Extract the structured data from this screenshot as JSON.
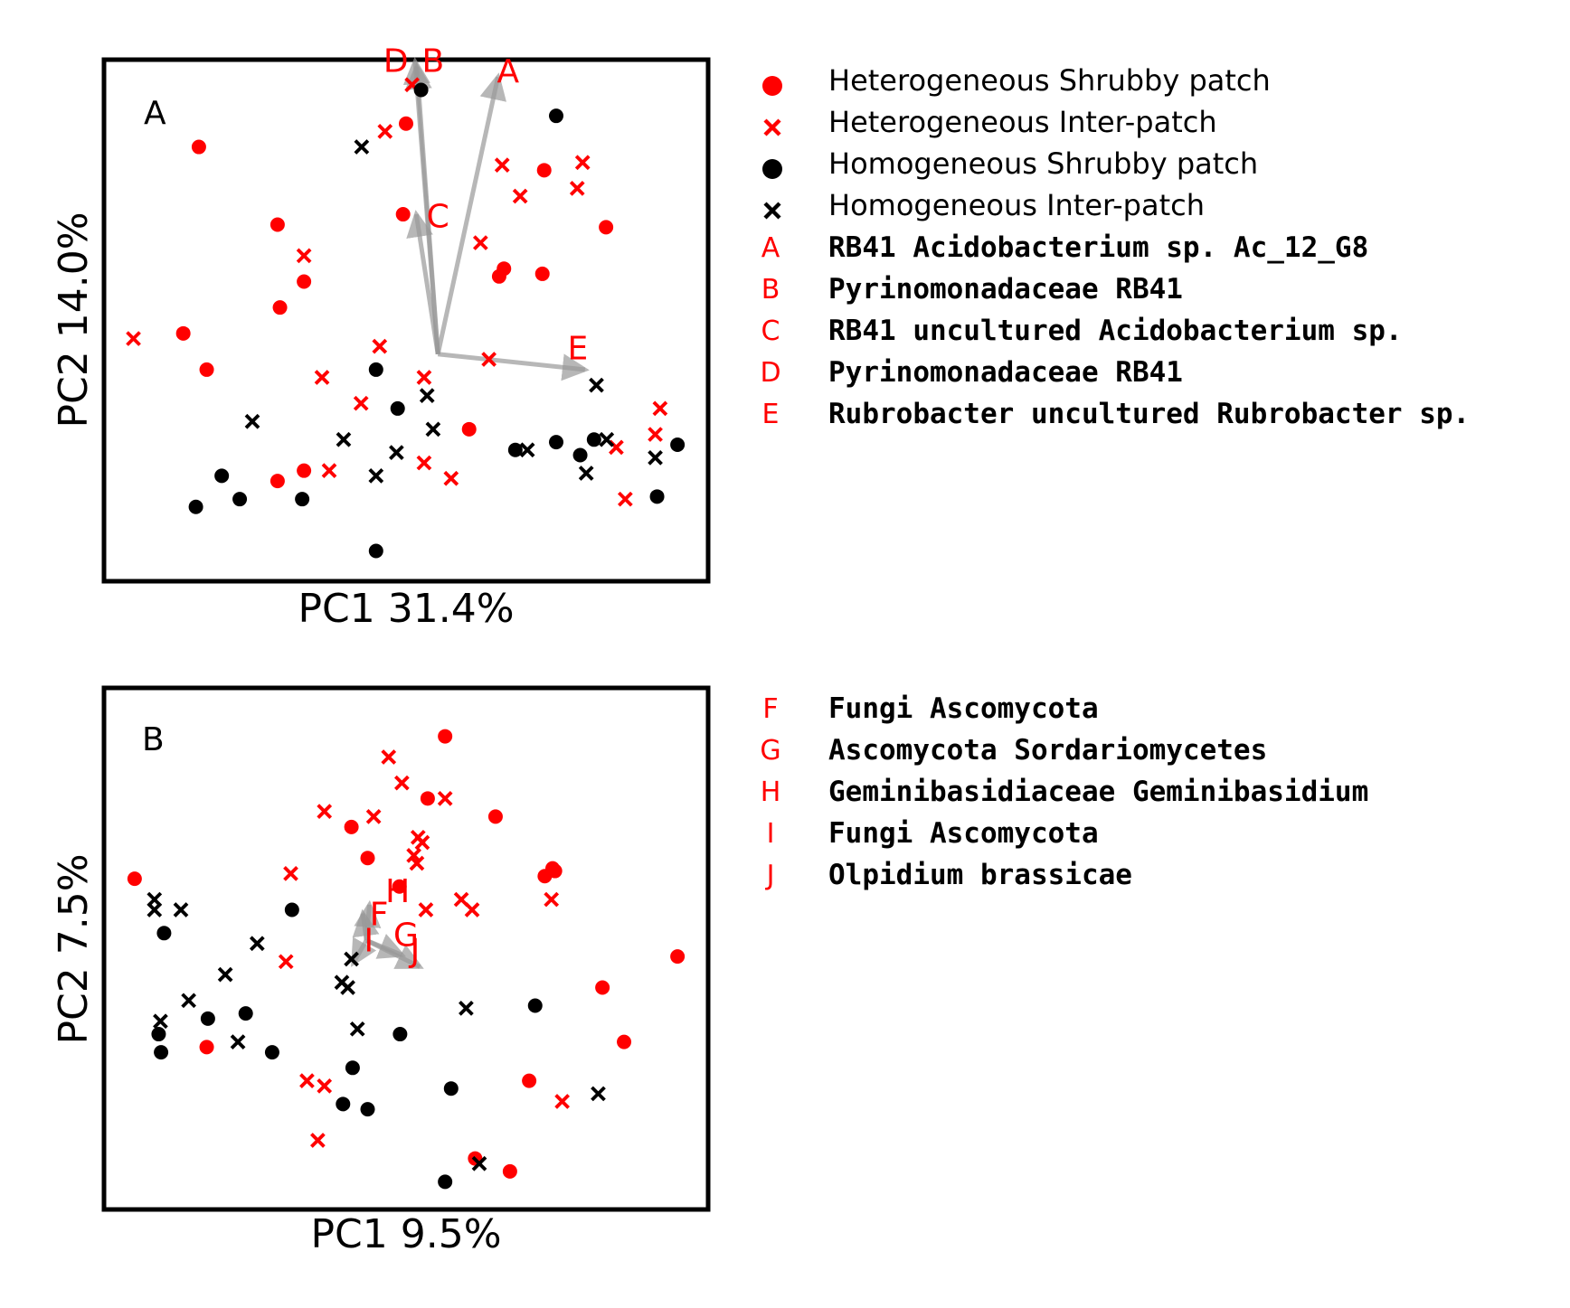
{
  "colors": {
    "heterogeneous": "#ff0000",
    "homogeneous": "#000000",
    "arrow": "#999999",
    "frame": "#000000"
  },
  "legend": {
    "groups": [
      {
        "label": "Heterogeneous Shrubby patch",
        "color": "#ff0000",
        "marker": "circle"
      },
      {
        "label": "Heterogeneous Inter-patch",
        "color": "#ff0000",
        "marker": "cross"
      },
      {
        "label": "Homogeneous Shrubby patch",
        "color": "#000000",
        "marker": "circle"
      },
      {
        "label": "Homogeneous Inter-patch",
        "color": "#000000",
        "marker": "cross"
      }
    ],
    "taxa_a": [
      {
        "key": "A",
        "label": "RB41 Acidobacterium sp. Ac_12_G8"
      },
      {
        "key": "B",
        "label": "Pyrinomonadaceae RB41"
      },
      {
        "key": "C",
        "label": "RB41 uncultured Acidobacterium sp."
      },
      {
        "key": "D",
        "label": "Pyrinomonadaceae RB41"
      },
      {
        "key": "E",
        "label": "Rubrobacter uncultured Rubrobacter sp."
      }
    ],
    "taxa_b": [
      {
        "key": "F",
        "label": "Fungi Ascomycota"
      },
      {
        "key": "G",
        "label": "Ascomycota Sordariomycetes"
      },
      {
        "key": "H",
        "label": "Geminibasidiaceae Geminibasidium"
      },
      {
        "key": "I",
        "label": "Fungi Ascomycota"
      },
      {
        "key": "J",
        "label": "Olpidium brassicae"
      }
    ]
  },
  "chart_data": [
    {
      "type": "scatter",
      "panel": "A",
      "xlabel": "PC1 31.4%",
      "ylabel": "PC2 14.0%",
      "xlim": [
        0,
        100
      ],
      "ylim": [
        0,
        100
      ],
      "ticks": "none",
      "origin": [
        55.3,
        43.5
      ],
      "arrows": [
        {
          "label": "A",
          "x": 65.3,
          "y": 97.0,
          "label_x": 67.0,
          "label_y": 96.0
        },
        {
          "label": "B",
          "x": 51.8,
          "y": 99.0,
          "label_x": 54.5,
          "label_y": 98.0
        },
        {
          "label": "C",
          "x": 51.7,
          "y": 70.5,
          "label_x": 55.3,
          "label_y": 68.0
        },
        {
          "label": "D",
          "x": 51.5,
          "y": 100.0,
          "label_x": 48.3,
          "label_y": 98.0
        },
        {
          "label": "E",
          "x": 79.8,
          "y": 40.5,
          "label_x": 78.6,
          "label_y": 42.5
        }
      ],
      "series": [
        {
          "name": "Heterogeneous Shrubby patch",
          "x": [
            15.5,
            28.6,
            29.0,
            33.0,
            49.5,
            50.0,
            66.3,
            65.5,
            72.7,
            73.0,
            83.3,
            12.9,
            16.8,
            33.0,
            28.6,
            60.5
          ],
          "y": [
            83.5,
            68.5,
            52.5,
            57.5,
            70.5,
            88.0,
            60.0,
            58.5,
            59.0,
            79.0,
            68.0,
            47.5,
            40.5,
            21.0,
            19.0,
            29.0
          ]
        },
        {
          "name": "Heterogeneous Inter-patch",
          "x": [
            51.0,
            46.5,
            66.0,
            69.0,
            79.4,
            78.5,
            62.4,
            33.0,
            4.6,
            45.6,
            36.0,
            42.5,
            63.8,
            53.0,
            53.0,
            57.5,
            92.3,
            91.5,
            85.0,
            86.5,
            37.2
          ],
          "y": [
            95.5,
            86.5,
            80.0,
            74.0,
            80.5,
            75.5,
            65.0,
            62.5,
            46.5,
            45.0,
            39.0,
            34.0,
            42.5,
            39.0,
            22.5,
            19.5,
            33.0,
            28.0,
            25.5,
            15.5,
            21.0
          ]
        },
        {
          "name": "Homogeneous Shrubby patch",
          "x": [
            52.5,
            75.0,
            45.0,
            48.6,
            19.3,
            15.0,
            22.3,
            32.7,
            45.0,
            68.2,
            75.0,
            79.0,
            81.3,
            91.8,
            95.2
          ],
          "y": [
            94.5,
            89.5,
            40.5,
            33.0,
            20.0,
            14.0,
            15.5,
            15.5,
            5.5,
            25.0,
            26.5,
            24.0,
            27.0,
            16.0,
            26.0
          ]
        },
        {
          "name": "Homogeneous Inter-patch",
          "x": [
            42.6,
            24.4,
            39.6,
            81.7,
            53.5,
            54.5,
            48.4,
            45.0,
            70.2,
            83.4,
            80.0,
            91.5
          ],
          "y": [
            83.5,
            30.5,
            27.0,
            37.5,
            35.5,
            29.0,
            24.5,
            20.0,
            25.0,
            27.0,
            20.5,
            23.5
          ]
        }
      ]
    },
    {
      "type": "scatter",
      "panel": "B",
      "xlabel": "PC1 9.5%",
      "ylabel": "PC2 7.5%",
      "xlim": [
        0,
        100
      ],
      "ylim": [
        0,
        100
      ],
      "ticks": "none",
      "origin": [
        43.4,
        51.6
      ],
      "arrows": [
        {
          "label": "F",
          "x": 42.8,
          "y": 56.8,
          "label_x": 45.5,
          "label_y": 54.5
        },
        {
          "label": "G",
          "x": 49.3,
          "y": 48.8,
          "label_x": 50.0,
          "label_y": 50.5
        },
        {
          "label": "H",
          "x": 43.9,
          "y": 58.5,
          "label_x": 48.6,
          "label_y": 59.0
        },
        {
          "label": "I",
          "x": 41.2,
          "y": 47.2,
          "label_x": 43.8,
          "label_y": 49.5
        },
        {
          "label": "J",
          "x": 52.3,
          "y": 46.5,
          "label_x": 51.5,
          "label_y": 47.5
        }
      ],
      "series": [
        {
          "name": "Heterogeneous Shrubby patch",
          "x": [
            56.5,
            53.6,
            64.9,
            40.9,
            43.6,
            73.1,
            74.4,
            74.8,
            48.9,
            4.8,
            95.2,
            82.7,
            86.3,
            16.8,
            70.5,
            61.5,
            67.3
          ],
          "y": [
            91.0,
            79.0,
            75.5,
            73.5,
            67.5,
            64.0,
            65.5,
            65.0,
            62.0,
            63.5,
            48.5,
            42.5,
            32.0,
            31.0,
            24.5,
            9.5,
            7.0
          ]
        },
        {
          "name": "Heterogeneous Inter-patch",
          "x": [
            47.1,
            49.3,
            56.5,
            36.4,
            44.6,
            52.0,
            52.7,
            51.3,
            51.8,
            30.8,
            59.2,
            61.0,
            74.2,
            53.3,
            30.0,
            33.5,
            36.4,
            76.0,
            35.3
          ],
          "y": [
            87.0,
            82.0,
            79.0,
            76.5,
            75.5,
            71.5,
            70.5,
            68.0,
            66.5,
            64.5,
            59.5,
            57.5,
            59.5,
            57.5,
            47.5,
            24.5,
            23.5,
            20.5,
            13.0
          ]
        },
        {
          "name": "Homogeneous Shrubby patch",
          "x": [
            31.0,
            9.7,
            17.0,
            23.3,
            8.8,
            9.2,
            27.7,
            49.0,
            41.1,
            39.5,
            43.6,
            57.5,
            71.5,
            56.5
          ],
          "y": [
            57.5,
            53.0,
            36.5,
            37.5,
            33.5,
            30.0,
            30.0,
            33.5,
            27.0,
            20.0,
            19.0,
            23.0,
            39.0,
            5.0
          ]
        },
        {
          "name": "Homogeneous Inter-patch",
          "x": [
            8.1,
            8.1,
            12.5,
            25.2,
            19.9,
            40.9,
            39.3,
            40.3,
            13.8,
            9.1,
            41.9,
            22.0,
            60.0,
            82.0,
            62.2
          ],
          "y": [
            59.5,
            57.5,
            57.5,
            51.0,
            45.0,
            48.0,
            43.5,
            42.5,
            40.0,
            36.0,
            34.5,
            32.0,
            38.5,
            22.0,
            8.5
          ]
        }
      ]
    }
  ]
}
